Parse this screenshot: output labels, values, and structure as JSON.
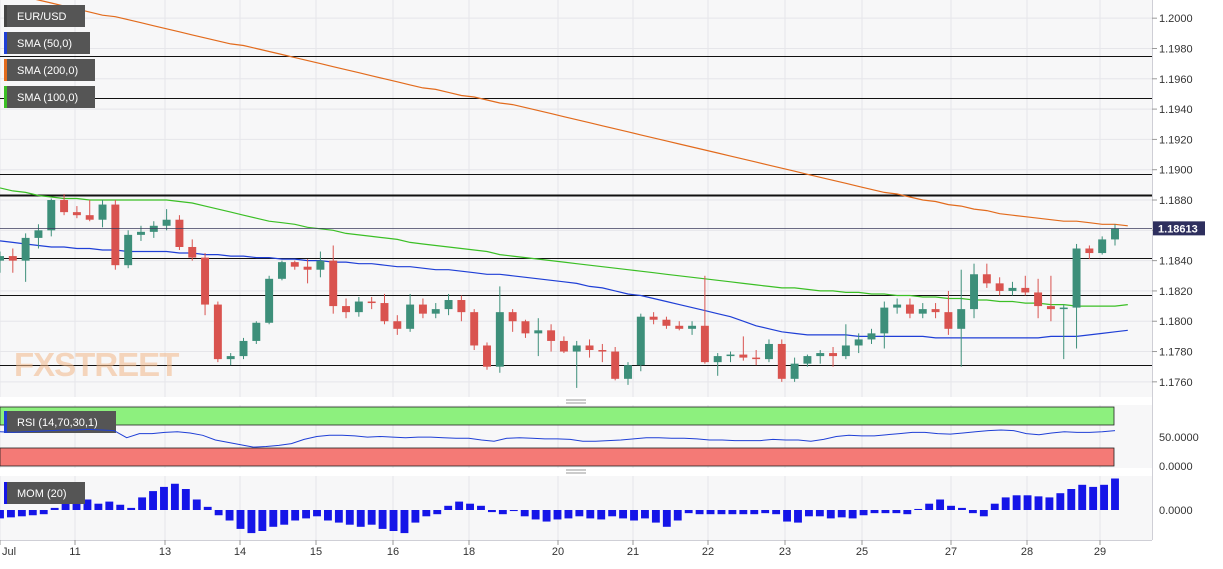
{
  "chart_data": [
    {
      "type": "candlestick",
      "title": "EUR/USD",
      "y_axis": {
        "ticks": [
          "1.2000",
          "1.1980",
          "1.1960",
          "1.1940",
          "1.1920",
          "1.1900",
          "1.1880",
          "1.1860",
          "1.1840",
          "1.1820",
          "1.1800",
          "1.1780",
          "1.1760"
        ],
        "ylim": [
          1.175,
          1.2012
        ]
      },
      "x_axis": {
        "ticks": [
          "Jul",
          "11",
          "13",
          "14",
          "15",
          "16",
          "18",
          "20",
          "21",
          "22",
          "23",
          "25",
          "27",
          "28",
          "29"
        ]
      },
      "last_price": "1.18613",
      "last_price_value": 1.18613,
      "horizontal_levels": [
        1.1975,
        1.1947,
        1.1897,
        1.1883,
        1.1842,
        1.1817,
        1.1771
      ],
      "ohlc": [
        [
          1.184,
          1.1846,
          1.1832,
          1.1843
        ],
        [
          1.1843,
          1.1848,
          1.1832,
          1.184
        ],
        [
          1.184,
          1.1858,
          1.1826,
          1.1855
        ],
        [
          1.1855,
          1.1864,
          1.1848,
          1.186
        ],
        [
          1.186,
          1.1881,
          1.1856,
          1.188
        ],
        [
          1.188,
          1.1884,
          1.187,
          1.1872
        ],
        [
          1.1872,
          1.1876,
          1.1868,
          1.187
        ],
        [
          1.187,
          1.188,
          1.1866,
          1.1867
        ],
        [
          1.1867,
          1.188,
          1.1862,
          1.1877
        ],
        [
          1.1877,
          1.188,
          1.1834,
          1.1837
        ],
        [
          1.1837,
          1.186,
          1.1835,
          1.1857
        ],
        [
          1.1857,
          1.1863,
          1.1853,
          1.1859
        ],
        [
          1.1859,
          1.1866,
          1.1855,
          1.1863
        ],
        [
          1.1863,
          1.1874,
          1.186,
          1.1867
        ],
        [
          1.1867,
          1.187,
          1.1847,
          1.1849
        ],
        [
          1.1849,
          1.1854,
          1.184,
          1.1842
        ],
        [
          1.1842,
          1.1845,
          1.1804,
          1.1811
        ],
        [
          1.1811,
          1.1813,
          1.1773,
          1.1775
        ],
        [
          1.1775,
          1.1779,
          1.1771,
          1.1777
        ],
        [
          1.1777,
          1.1789,
          1.1775,
          1.1787
        ],
        [
          1.1787,
          1.18,
          1.1785,
          1.1799
        ],
        [
          1.1799,
          1.183,
          1.1798,
          1.1828
        ],
        [
          1.1828,
          1.184,
          1.1827,
          1.1839
        ],
        [
          1.1839,
          1.184,
          1.1834,
          1.1836
        ],
        [
          1.1836,
          1.1841,
          1.1825,
          1.1834
        ],
        [
          1.1834,
          1.1846,
          1.1829,
          1.184
        ],
        [
          1.184,
          1.185,
          1.1805,
          1.181
        ],
        [
          1.181,
          1.1815,
          1.1802,
          1.1806
        ],
        [
          1.1806,
          1.1816,
          1.1803,
          1.1813
        ],
        [
          1.1813,
          1.1816,
          1.1808,
          1.1812
        ],
        [
          1.1812,
          1.1818,
          1.1798,
          1.18
        ],
        [
          1.18,
          1.1804,
          1.1791,
          1.1795
        ],
        [
          1.1795,
          1.1818,
          1.1793,
          1.1811
        ],
        [
          1.1811,
          1.1815,
          1.1802,
          1.1805
        ],
        [
          1.1805,
          1.1812,
          1.1802,
          1.1808
        ],
        [
          1.1808,
          1.1818,
          1.1804,
          1.1814
        ],
        [
          1.1814,
          1.1817,
          1.18,
          1.1806
        ],
        [
          1.1806,
          1.1808,
          1.1781,
          1.1784
        ],
        [
          1.1784,
          1.1786,
          1.1768,
          1.177
        ],
        [
          1.177,
          1.1823,
          1.1766,
          1.1806
        ],
        [
          1.1806,
          1.1808,
          1.1793,
          1.18
        ],
        [
          1.18,
          1.1801,
          1.1789,
          1.1792
        ],
        [
          1.1792,
          1.1802,
          1.1777,
          1.1794
        ],
        [
          1.1794,
          1.1798,
          1.178,
          1.1787
        ],
        [
          1.1787,
          1.179,
          1.1779,
          1.178
        ],
        [
          1.178,
          1.1787,
          1.1756,
          1.1784
        ],
        [
          1.1784,
          1.1788,
          1.1776,
          1.1781
        ],
        [
          1.1781,
          1.1785,
          1.1773,
          1.178
        ],
        [
          1.178,
          1.1783,
          1.1761,
          1.1762
        ],
        [
          1.1762,
          1.1773,
          1.1758,
          1.1771
        ],
        [
          1.1771,
          1.1805,
          1.1767,
          1.1803
        ],
        [
          1.1803,
          1.1806,
          1.1798,
          1.1801
        ],
        [
          1.1801,
          1.1803,
          1.1795,
          1.1797
        ],
        [
          1.1797,
          1.18,
          1.1794,
          1.1795
        ],
        [
          1.1795,
          1.18,
          1.1791,
          1.1797
        ],
        [
          1.1797,
          1.183,
          1.1772,
          1.1773
        ],
        [
          1.1773,
          1.1779,
          1.1764,
          1.1777
        ],
        [
          1.1777,
          1.178,
          1.1773,
          1.1778
        ],
        [
          1.1778,
          1.179,
          1.1774,
          1.1776
        ],
        [
          1.1776,
          1.1781,
          1.1771,
          1.1775
        ],
        [
          1.1775,
          1.1788,
          1.1773,
          1.1785
        ],
        [
          1.1785,
          1.1788,
          1.176,
          1.1762
        ],
        [
          1.1762,
          1.1776,
          1.176,
          1.1772
        ],
        [
          1.1772,
          1.1778,
          1.177,
          1.1777
        ],
        [
          1.1777,
          1.1781,
          1.1772,
          1.1779
        ],
        [
          1.1779,
          1.1783,
          1.177,
          1.1777
        ],
        [
          1.1777,
          1.1798,
          1.1775,
          1.1784
        ],
        [
          1.1784,
          1.1792,
          1.1779,
          1.1788
        ],
        [
          1.1788,
          1.1795,
          1.1785,
          1.1792
        ],
        [
          1.1792,
          1.1813,
          1.1782,
          1.1809
        ],
        [
          1.1809,
          1.1815,
          1.1805,
          1.1811
        ],
        [
          1.1811,
          1.1815,
          1.1802,
          1.1805
        ],
        [
          1.1805,
          1.1812,
          1.1802,
          1.1808
        ],
        [
          1.1808,
          1.1812,
          1.1802,
          1.1806
        ],
        [
          1.1806,
          1.182,
          1.1791,
          1.1795
        ],
        [
          1.1795,
          1.1834,
          1.177,
          1.1808
        ],
        [
          1.1808,
          1.1838,
          1.1802,
          1.1831
        ],
        [
          1.1831,
          1.1838,
          1.1822,
          1.1825
        ],
        [
          1.1825,
          1.1829,
          1.1817,
          1.182
        ],
        [
          1.182,
          1.1826,
          1.1817,
          1.1822
        ],
        [
          1.1822,
          1.183,
          1.1817,
          1.1819
        ],
        [
          1.1819,
          1.1828,
          1.1802,
          1.181
        ],
        [
          1.181,
          1.183,
          1.18,
          1.1808
        ],
        [
          1.1808,
          1.1811,
          1.1775,
          1.1809
        ],
        [
          1.1809,
          1.1851,
          1.1782,
          1.1848
        ],
        [
          1.1848,
          1.185,
          1.1841,
          1.1845
        ],
        [
          1.1845,
          1.1856,
          1.1844,
          1.1854
        ],
        [
          1.1854,
          1.1864,
          1.185,
          1.1861
        ]
      ],
      "series": [
        {
          "name": "SMA (50,0)",
          "color": "#1f3fd6",
          "values": [
            1.1853,
            1.1852,
            1.1851,
            1.185,
            1.1849,
            1.1849,
            1.1848,
            1.1848,
            1.1847,
            1.1847,
            1.1846,
            1.1846,
            1.1846,
            1.1846,
            1.1845,
            1.1845,
            1.1844,
            1.1844,
            1.1843,
            1.1843,
            1.1842,
            1.1842,
            1.1841,
            1.1841,
            1.184,
            1.184,
            1.1839,
            1.1839,
            1.1838,
            1.1838,
            1.1837,
            1.1836,
            1.1836,
            1.1835,
            1.1834,
            1.1834,
            1.1833,
            1.1832,
            1.1831,
            1.1831,
            1.183,
            1.1829,
            1.1828,
            1.1827,
            1.1826,
            1.1825,
            1.1823,
            1.1822,
            1.182,
            1.1818,
            1.1817,
            1.1815,
            1.1813,
            1.1811,
            1.1809,
            1.1807,
            1.1805,
            1.1803,
            1.18,
            1.1797,
            1.1795,
            1.1793,
            1.1792,
            1.1791,
            1.1791,
            1.1791,
            1.1791,
            1.179,
            1.179,
            1.179,
            1.179,
            1.179,
            1.179,
            1.1789,
            1.1789,
            1.1789,
            1.1789,
            1.1789,
            1.1789,
            1.1789,
            1.1789,
            1.1789,
            1.179,
            1.179,
            1.179,
            1.1791,
            1.1792,
            1.1793,
            1.1794
          ]
        },
        {
          "name": "SMA (200,0)",
          "color": "#e26b1d",
          "values": [
            1.2018,
            1.2016,
            1.2014,
            1.2012,
            1.201,
            1.2008,
            1.2006,
            1.2004,
            1.2002,
            1.2001,
            1.1999,
            1.1997,
            1.1995,
            1.1993,
            1.1991,
            1.1989,
            1.1987,
            1.1985,
            1.1983,
            1.1982,
            1.198,
            1.1978,
            1.1976,
            1.1974,
            1.1972,
            1.197,
            1.1968,
            1.1966,
            1.1964,
            1.1962,
            1.196,
            1.1958,
            1.1956,
            1.1954,
            1.1953,
            1.1951,
            1.1949,
            1.1948,
            1.1946,
            1.1944,
            1.1943,
            1.1941,
            1.1939,
            1.1937,
            1.1935,
            1.1933,
            1.1931,
            1.1929,
            1.1927,
            1.1925,
            1.1923,
            1.1921,
            1.1919,
            1.1917,
            1.1915,
            1.1913,
            1.1911,
            1.1909,
            1.1907,
            1.1905,
            1.1903,
            1.1901,
            1.1899,
            1.1897,
            1.1895,
            1.1893,
            1.1891,
            1.1889,
            1.1887,
            1.1885,
            1.1884,
            1.1882,
            1.188,
            1.1879,
            1.1877,
            1.1876,
            1.1874,
            1.1873,
            1.1871,
            1.187,
            1.1869,
            1.1868,
            1.1867,
            1.1866,
            1.1866,
            1.1865,
            1.1864,
            1.1864,
            1.1863
          ]
        },
        {
          "name": "SMA (100,0)",
          "color": "#3bbf25",
          "values": [
            1.1888,
            1.1886,
            1.1885,
            1.1883,
            1.1882,
            1.1881,
            1.1881,
            1.188,
            1.188,
            1.188,
            1.188,
            1.188,
            1.188,
            1.188,
            1.1879,
            1.1878,
            1.1876,
            1.1874,
            1.1872,
            1.187,
            1.1868,
            1.1866,
            1.1865,
            1.1864,
            1.1862,
            1.1861,
            1.186,
            1.1858,
            1.1857,
            1.1856,
            1.1855,
            1.1854,
            1.1852,
            1.1851,
            1.185,
            1.1849,
            1.1848,
            1.1847,
            1.1846,
            1.1844,
            1.1843,
            1.1842,
            1.1841,
            1.184,
            1.1839,
            1.1838,
            1.1837,
            1.1836,
            1.1835,
            1.1834,
            1.1833,
            1.1832,
            1.1831,
            1.183,
            1.1829,
            1.1828,
            1.1827,
            1.1826,
            1.1825,
            1.1824,
            1.1823,
            1.1822,
            1.1822,
            1.1821,
            1.182,
            1.182,
            1.1819,
            1.1819,
            1.1818,
            1.1818,
            1.1817,
            1.1817,
            1.1816,
            1.1816,
            1.1815,
            1.1815,
            1.1814,
            1.1814,
            1.1813,
            1.1813,
            1.1812,
            1.1812,
            1.1811,
            1.1811,
            1.181,
            1.181,
            1.181,
            1.181,
            1.1811
          ]
        }
      ]
    },
    {
      "type": "line",
      "title": "RSI (14,70,30,1)",
      "y_axis": {
        "ticks": [
          "50.0000",
          "0.0000"
        ]
      },
      "overbought": 70,
      "oversold": 30,
      "series": [
        {
          "name": "RSI (14,70,30,1)",
          "color": "#1f3fd6",
          "values": [
            58,
            57,
            58,
            59,
            60,
            61,
            61,
            62,
            61,
            60,
            48,
            55,
            55,
            57,
            58,
            56,
            52,
            44,
            40,
            36,
            32,
            33,
            35,
            38,
            45,
            50,
            52,
            52,
            51,
            49,
            50,
            49,
            48,
            49,
            49,
            48,
            47,
            47,
            44,
            42,
            47,
            48,
            47,
            46,
            46,
            45,
            42,
            42,
            43,
            44,
            46,
            48,
            48,
            47,
            47,
            46,
            44,
            44,
            43,
            43,
            43,
            45,
            44,
            44,
            42,
            45,
            50,
            52,
            51,
            51,
            53,
            55,
            57,
            57,
            55,
            54,
            56,
            58,
            60,
            61,
            60,
            55,
            53,
            56,
            58,
            57,
            57,
            58,
            60
          ]
        }
      ]
    },
    {
      "type": "bar",
      "title": "MOM (20)",
      "y_axis": {
        "ticks": [
          "0.0000"
        ]
      },
      "series": [
        {
          "name": "MOM (20)",
          "color": "#1515e8",
          "values": [
            -8,
            -7,
            -6,
            -5,
            -4,
            2,
            6,
            9,
            10,
            6,
            8,
            5,
            2,
            12,
            18,
            22,
            25,
            20,
            10,
            3,
            -5,
            -10,
            -18,
            -22,
            -20,
            -16,
            -14,
            -10,
            -8,
            -6,
            -10,
            -12,
            -14,
            -16,
            -14,
            -18,
            -20,
            -22,
            -12,
            -6,
            -4,
            4,
            8,
            6,
            4,
            -2,
            -4,
            -1,
            -6,
            -9,
            -11,
            -9,
            -8,
            -6,
            -8,
            -9,
            -6,
            -8,
            -10,
            -8,
            -12,
            -16,
            -10,
            -3,
            -4,
            -4,
            -4,
            -4,
            -4,
            -4,
            -3,
            -4,
            -11,
            -12,
            -6,
            -6,
            -8,
            -7,
            -8,
            -5,
            -3,
            -3,
            -3,
            -4,
            1,
            6,
            10,
            4,
            2,
            -3,
            -6,
            6,
            12,
            14,
            14,
            13,
            12,
            16,
            20,
            24,
            22,
            24,
            30
          ]
        }
      ]
    }
  ],
  "legend": [
    {
      "label": "EUR/USD",
      "swatch": "#444444"
    },
    {
      "label": "SMA (50,0)",
      "swatch": "#1f3fd6"
    },
    {
      "label": "SMA (200,0)",
      "swatch": "#e26b1d"
    },
    {
      "label": "SMA (100,0)",
      "swatch": "#3bbf25"
    }
  ],
  "watermark": "FXSTREET",
  "colors": {
    "up": "#3d8f7a",
    "down": "#d9534f",
    "panel_bg": "#f7f7f8",
    "grid": "#e6e6ea",
    "overbought_band": "#8df07e",
    "oversold_band": "#f47a76"
  }
}
